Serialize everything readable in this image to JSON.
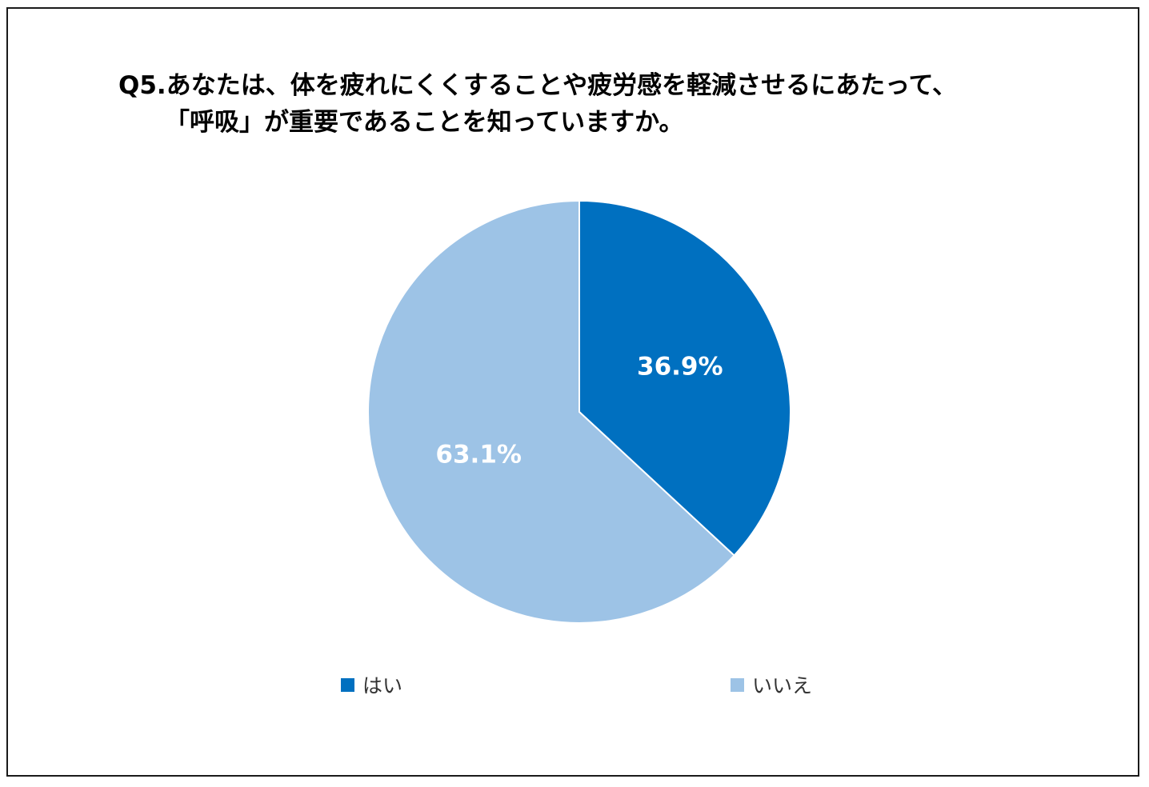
{
  "title": {
    "line1": "Q5.あなたは、体を疲れにくくすることや疲労感を軽減させるにあたって、",
    "line2": "「呼吸」が重要であることを知っていますか。"
  },
  "chart_data": {
    "type": "pie",
    "title": "Q5.あなたは、体を疲れにくくすることや疲労感を軽減させるにあたって、「呼吸」が重要であることを知っていますか。",
    "categories": [
      "はい",
      "いいえ"
    ],
    "values": [
      36.9,
      63.1
    ],
    "data_labels": [
      "36.9%",
      "63.1%"
    ],
    "colors": [
      "#0070C0",
      "#9DC3E6"
    ],
    "label_color": "#FFFFFF",
    "start_angle": "12 o'clock",
    "direction": "clockwise",
    "legend_position": "bottom"
  }
}
